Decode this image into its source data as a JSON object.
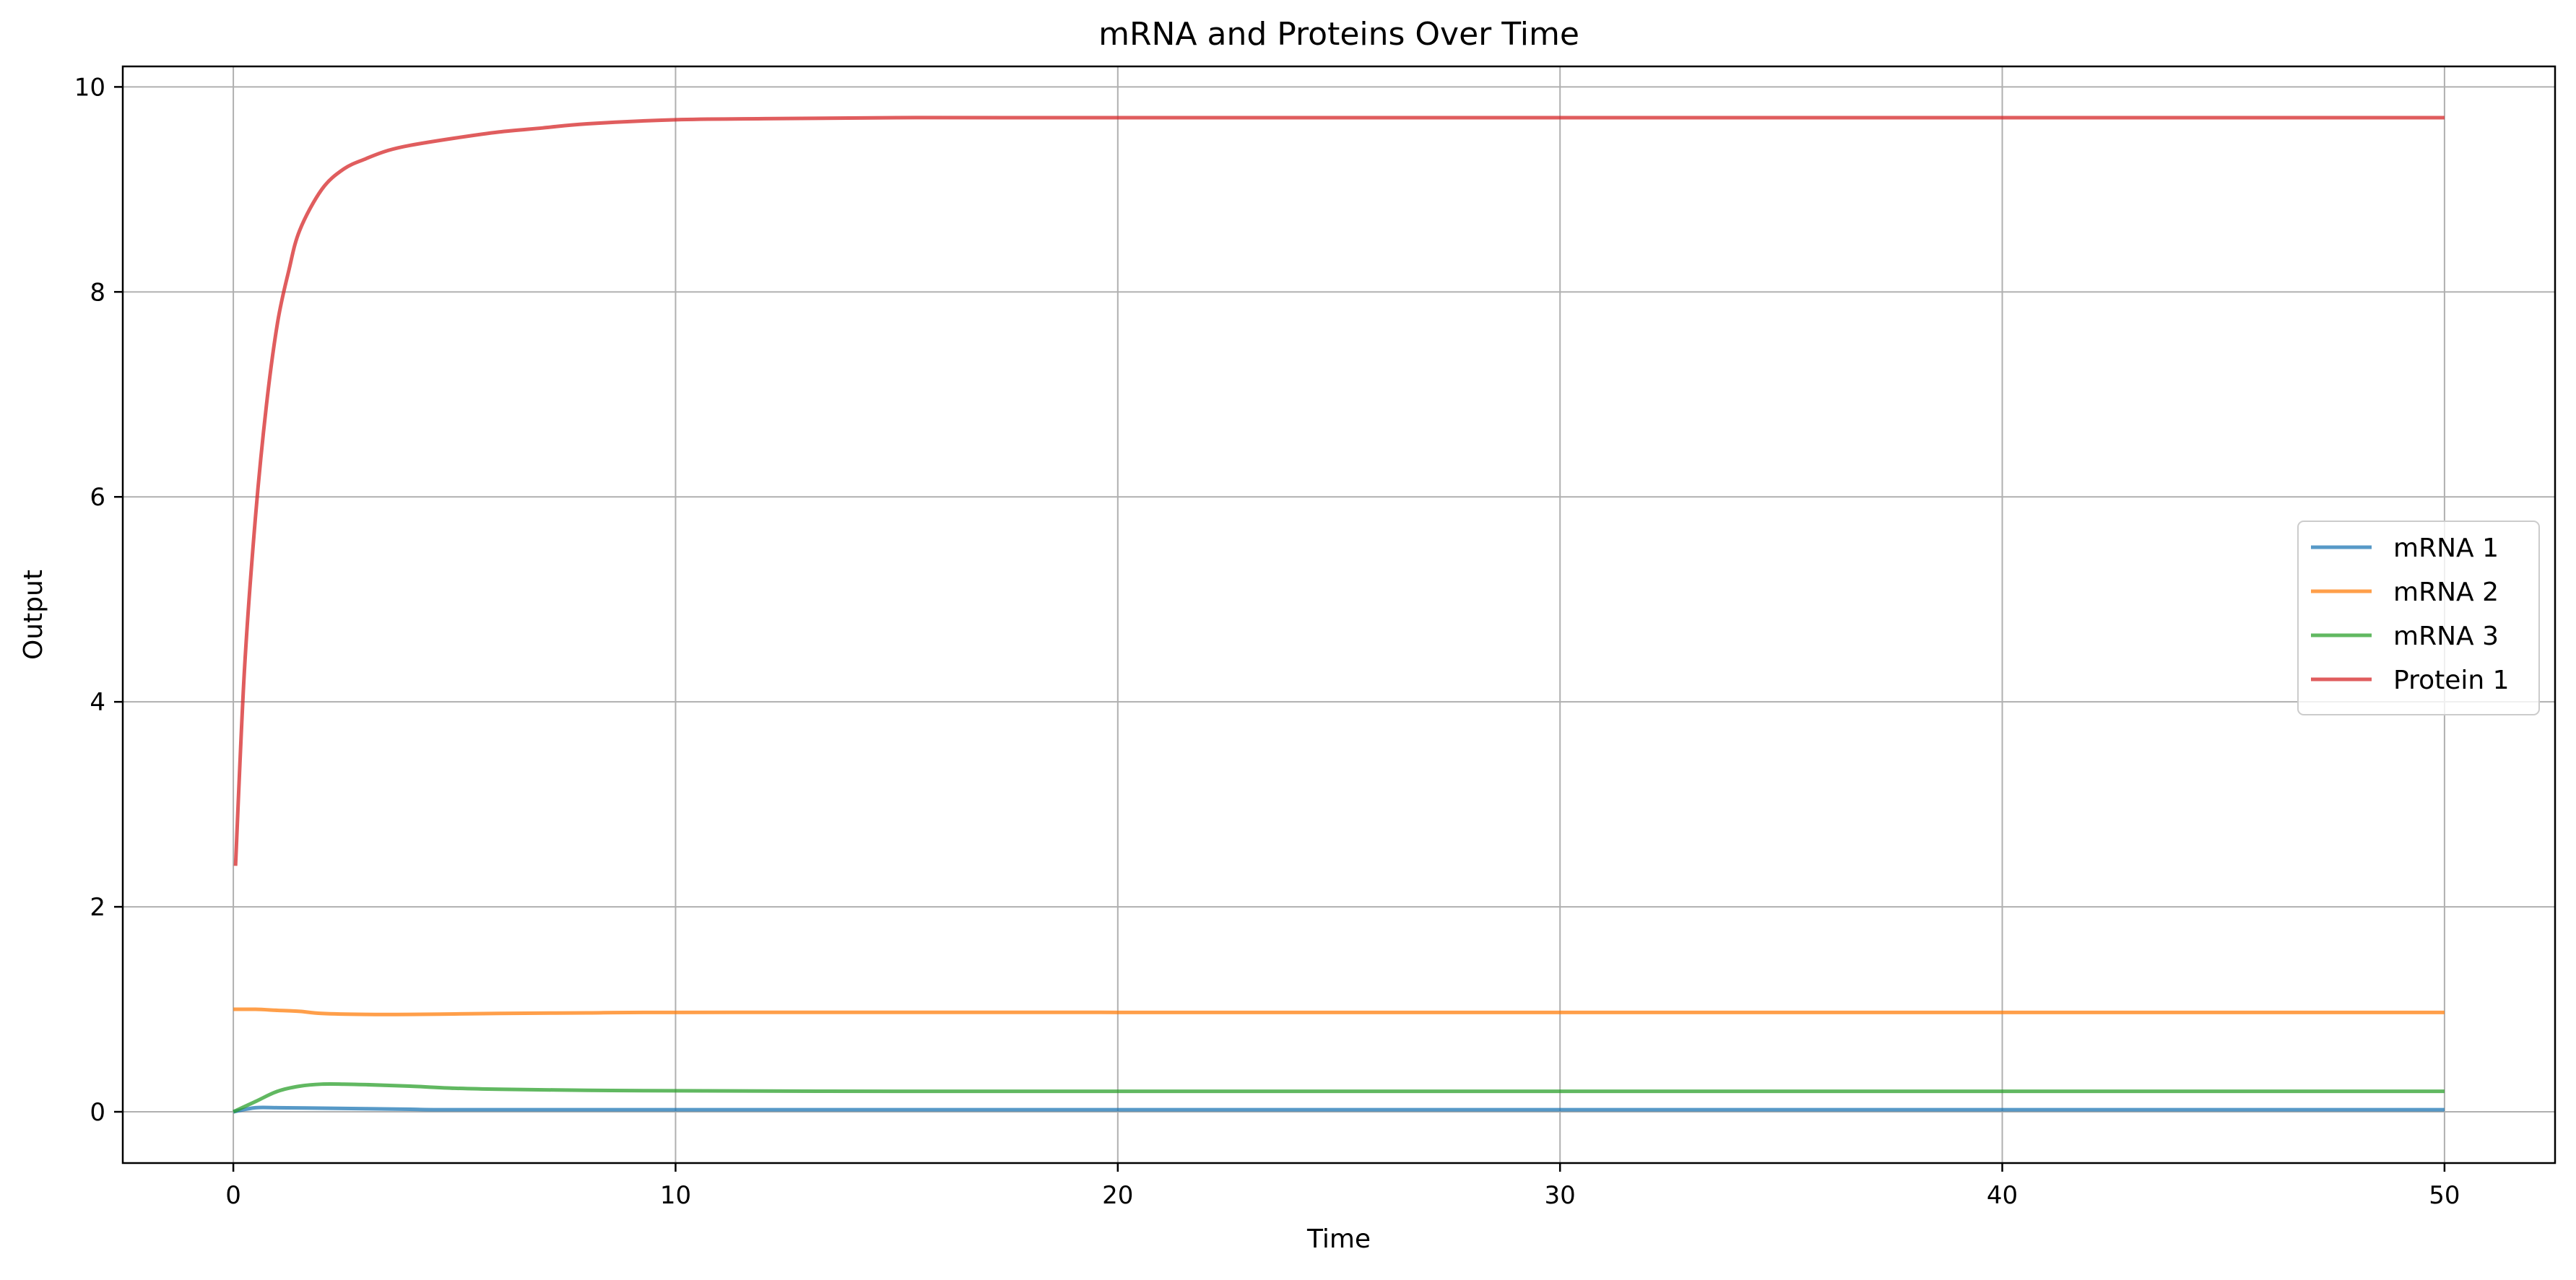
{
  "chart_data": {
    "type": "line",
    "title": "mRNA and Proteins Over Time",
    "xlabel": "Time",
    "ylabel": "Output",
    "xlim": [
      -2.5,
      52.5
    ],
    "ylim": [
      -0.5,
      10.2
    ],
    "xticks": [
      0,
      10,
      20,
      30,
      40,
      50
    ],
    "yticks": [
      0,
      2,
      4,
      6,
      8,
      10
    ],
    "grid": true,
    "legend_position": "center-right",
    "series": [
      {
        "name": "mRNA 1",
        "color": "#1f77b4",
        "x": [
          0,
          0.5,
          1,
          2,
          3,
          4,
          5,
          10,
          20,
          30,
          40,
          50
        ],
        "y": [
          0.0,
          0.04,
          0.04,
          0.035,
          0.03,
          0.025,
          0.02,
          0.02,
          0.02,
          0.02,
          0.02,
          0.02
        ]
      },
      {
        "name": "mRNA 2",
        "color": "#ff7f0e",
        "x": [
          0,
          0.5,
          1,
          1.5,
          2,
          3,
          4,
          5,
          6,
          8,
          10,
          20,
          30,
          40,
          50
        ],
        "y": [
          1.0,
          1.0,
          0.99,
          0.98,
          0.96,
          0.95,
          0.95,
          0.955,
          0.96,
          0.965,
          0.97,
          0.97,
          0.97,
          0.97,
          0.97
        ]
      },
      {
        "name": "mRNA 3",
        "color": "#2ca02c",
        "x": [
          0,
          0.5,
          1,
          1.5,
          2,
          2.5,
          3,
          4,
          5,
          6,
          8,
          10,
          15,
          20,
          30,
          40,
          50
        ],
        "y": [
          0.0,
          0.1,
          0.2,
          0.25,
          0.27,
          0.27,
          0.265,
          0.25,
          0.23,
          0.22,
          0.21,
          0.205,
          0.2,
          0.2,
          0.2,
          0.2,
          0.2
        ]
      },
      {
        "name": "Protein 1",
        "color": "#d62728",
        "x": [
          0.05,
          0.25,
          0.5,
          0.75,
          1,
          1.25,
          1.5,
          2,
          2.5,
          3,
          3.5,
          4,
          5,
          6,
          7,
          8,
          10,
          12,
          15,
          20,
          30,
          40,
          50
        ],
        "y": [
          2.4,
          4.3,
          5.8,
          6.9,
          7.7,
          8.2,
          8.6,
          9.0,
          9.2,
          9.3,
          9.38,
          9.43,
          9.5,
          9.56,
          9.6,
          9.64,
          9.68,
          9.69,
          9.7,
          9.7,
          9.7,
          9.7,
          9.7
        ]
      }
    ]
  }
}
